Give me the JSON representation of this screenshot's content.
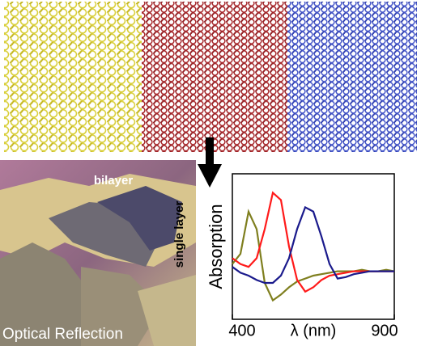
{
  "image_labels": {
    "bilayer": "bilayer",
    "single_layer": "single layer",
    "caption": "Optical Reflection"
  },
  "chart_data": {
    "type": "line",
    "x_label": "λ (nm)",
    "y_label": "Absorption",
    "x": [
      400,
      425,
      450,
      475,
      500,
      525,
      550,
      575,
      600,
      625,
      650,
      675,
      700,
      725,
      750,
      775,
      800,
      825,
      850,
      875,
      900
    ],
    "series": [
      {
        "name": "olive",
        "color": "#7f7f1f",
        "values": [
          0.38,
          0.45,
          0.74,
          0.62,
          0.25,
          0.13,
          0.17,
          0.22,
          0.26,
          0.28,
          0.3,
          0.31,
          0.32,
          0.33,
          0.33,
          0.33,
          0.34,
          0.33,
          0.33,
          0.34,
          0.33
        ]
      },
      {
        "name": "red",
        "color": "#ff1a1a",
        "values": [
          0.42,
          0.38,
          0.36,
          0.42,
          0.62,
          0.87,
          0.82,
          0.5,
          0.27,
          0.19,
          0.22,
          0.27,
          0.3,
          0.31,
          0.32,
          0.33,
          0.33,
          0.33,
          0.33,
          0.33,
          0.33
        ]
      },
      {
        "name": "blue",
        "color": "#1a1a8c",
        "values": [
          0.36,
          0.32,
          0.3,
          0.27,
          0.25,
          0.25,
          0.3,
          0.42,
          0.62,
          0.77,
          0.74,
          0.57,
          0.38,
          0.28,
          0.29,
          0.31,
          0.32,
          0.33,
          0.33,
          0.33,
          0.33
        ]
      }
    ],
    "xlim": [
      400,
      900
    ],
    "xticks": [
      400,
      900
    ],
    "ylim": [
      0,
      1
    ]
  }
}
